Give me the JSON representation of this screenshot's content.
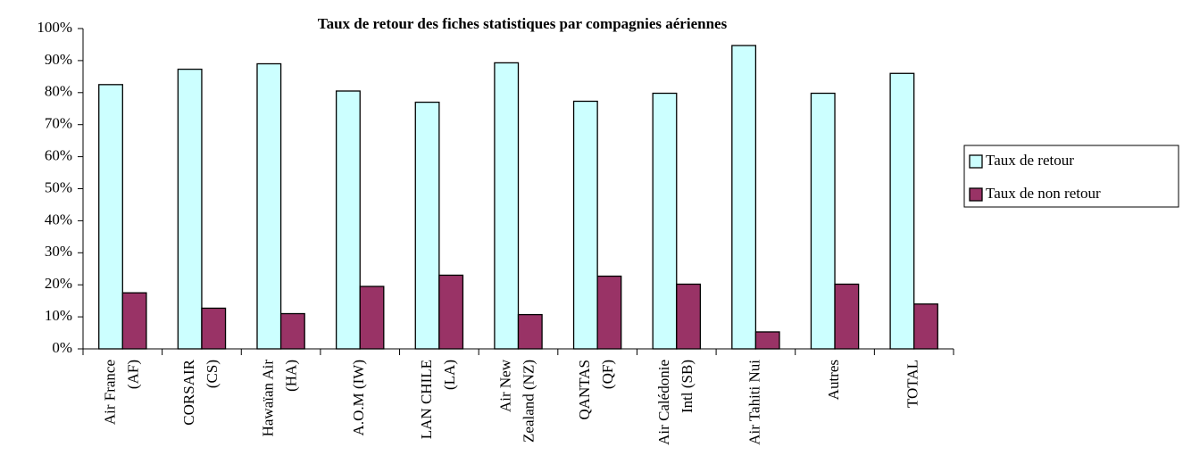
{
  "chart_data": {
    "type": "bar",
    "title": "Taux de retour des fiches statistiques par compagnies aériennes",
    "categories": [
      "Air France\n(AF)",
      "CORSAIR\n(CS)",
      "Hawaïan Air\n(HA)",
      "A.O.M (IW)",
      "LAN CHILE\n(LA)",
      "Air New\nZealand (NZ)",
      "QANTAS\n(QF)",
      "Air Calédonie\nIntl (SB)",
      "Air Tahiti Nui",
      "Autres",
      "TOTAL"
    ],
    "series": [
      {
        "name": "Taux de retour",
        "color": "#ccffff",
        "values": [
          82.5,
          87.3,
          89,
          80.5,
          77,
          89.3,
          77.3,
          79.8,
          94.7,
          79.8,
          86
        ]
      },
      {
        "name": "Taux de non retour",
        "color": "#993366",
        "values": [
          17.5,
          12.7,
          11,
          19.5,
          23,
          10.7,
          22.7,
          20.2,
          5.3,
          20.2,
          14
        ]
      }
    ],
    "ylim": [
      0,
      100
    ],
    "yticks": [
      {
        "value": 0,
        "label": "0%"
      },
      {
        "value": 10,
        "label": "10%"
      },
      {
        "value": 20,
        "label": "20%"
      },
      {
        "value": 30,
        "label": "30%"
      },
      {
        "value": 40,
        "label": "40%"
      },
      {
        "value": 50,
        "label": "50%"
      },
      {
        "value": 60,
        "label": "60%"
      },
      {
        "value": 70,
        "label": "70%"
      },
      {
        "value": 80,
        "label": "80%"
      },
      {
        "value": 90,
        "label": "90%"
      },
      {
        "value": 100,
        "label": "100%"
      }
    ],
    "legend": "right"
  }
}
